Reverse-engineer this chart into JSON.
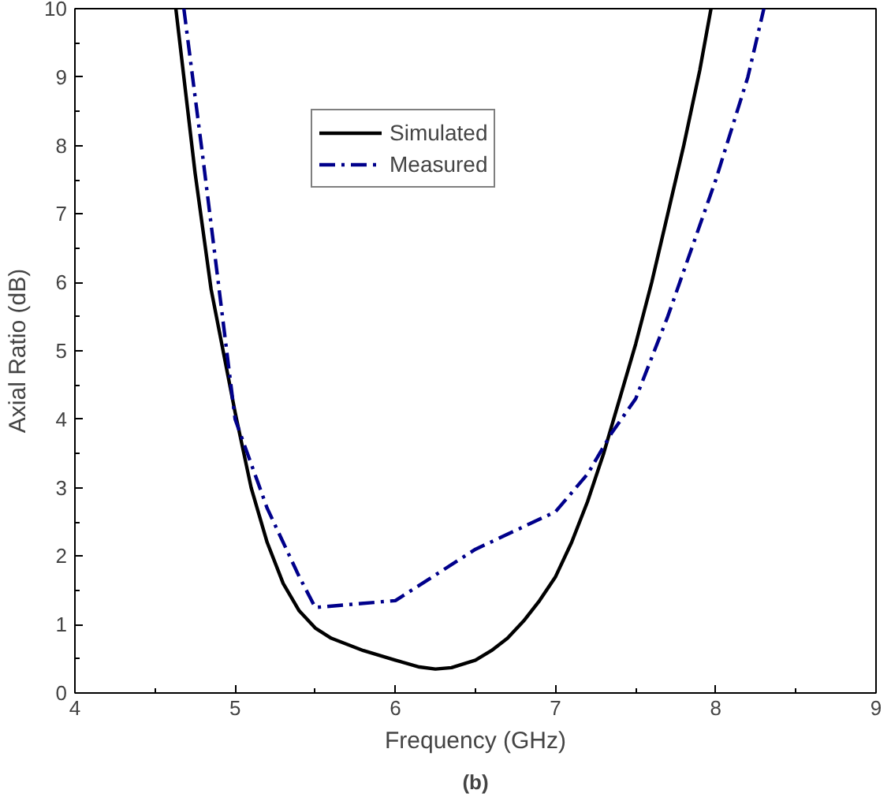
{
  "chart_data": {
    "type": "line",
    "xlabel": "Frequency (GHz)",
    "ylabel": "Axial Ratio (dB)",
    "xlim": [
      4,
      9
    ],
    "xticks": [
      4,
      5,
      6,
      7,
      8,
      9
    ],
    "ylim": [
      0,
      10
    ],
    "yticks": [
      0,
      1,
      2,
      3,
      4,
      5,
      6,
      7,
      8,
      9,
      10
    ],
    "grid": false,
    "legend": "top",
    "annotations": [
      "(b)"
    ],
    "series": [
      {
        "name": "Simulated",
        "color": "#000000",
        "line_style": "solid",
        "x": [
          4.63,
          4.75,
          4.85,
          5.0,
          5.1,
          5.2,
          5.3,
          5.4,
          5.5,
          5.6,
          5.8,
          6.0,
          6.15,
          6.25,
          6.35,
          6.5,
          6.6,
          6.7,
          6.8,
          6.9,
          7.0,
          7.1,
          7.2,
          7.3,
          7.4,
          7.5,
          7.6,
          7.7,
          7.8,
          7.9,
          7.97
        ],
        "values": [
          10,
          7.6,
          5.9,
          4.1,
          3.0,
          2.2,
          1.6,
          1.2,
          0.95,
          0.8,
          0.62,
          0.48,
          0.38,
          0.35,
          0.37,
          0.48,
          0.62,
          0.8,
          1.05,
          1.35,
          1.7,
          2.2,
          2.8,
          3.5,
          4.3,
          5.1,
          6.0,
          7.0,
          8.0,
          9.1,
          10
        ]
      },
      {
        "name": "Measured",
        "color": "#00008b",
        "line_style": "dashdot",
        "x": [
          4.68,
          4.8,
          4.9,
          5.0,
          5.2,
          5.4,
          5.5,
          6.0,
          6.5,
          7.0,
          7.2,
          7.35,
          7.5,
          7.7,
          8.0,
          8.2,
          8.3
        ],
        "values": [
          10,
          7.8,
          5.9,
          4.0,
          2.7,
          1.7,
          1.25,
          1.35,
          2.1,
          2.65,
          3.2,
          3.8,
          4.3,
          5.5,
          7.5,
          9.0,
          10
        ]
      }
    ]
  }
}
